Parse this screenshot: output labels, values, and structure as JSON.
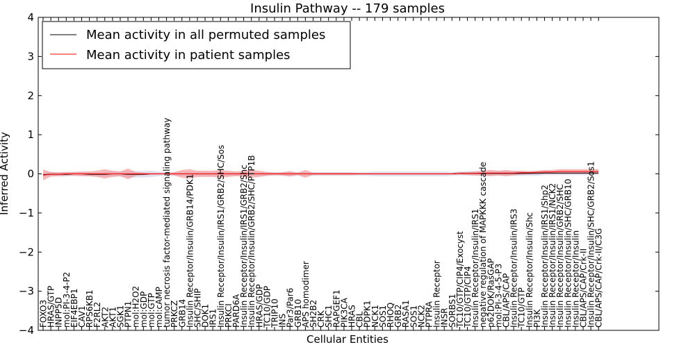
{
  "chart_data": {
    "type": "line",
    "title": "Insulin Pathway -- 179 samples",
    "xlabel": "Cellular Entities",
    "ylabel": "Inferred Activity",
    "ylim": [
      -4,
      4
    ],
    "yticks": [
      -4,
      -3,
      -2,
      -1,
      0,
      1,
      2,
      3,
      4
    ],
    "ytick_labels": [
      "−4",
      "−3",
      "−2",
      "−1",
      "0",
      "1",
      "2",
      "3",
      "4"
    ],
    "legend_position": "top-left",
    "categories": [
      "FOXO3",
      "HRAS/GTP",
      "INPP5D",
      "mol:PI-3-4-P2",
      "EIF4EBP1",
      "CAV1",
      "RPS6KB1",
      "F2RL2",
      "AKT2",
      "AKT1",
      "SGK1",
      "PTPN1",
      "mol:H2O2",
      "mol:GDP",
      "mol:GTP",
      "mol:cAMP",
      "tumor necrosis factor-mediated signaling pathway",
      "PRKCZ",
      "GRB14",
      "Insulin Receptor/Insulin/GRB14/PDK1",
      "SHC/SHIP",
      "DOK1",
      "IRS1",
      "Insulin Receptor/Insulin/IRS1/GRB2/SHC/Sos",
      "PRKCI",
      "PARD6A",
      "Insulin Receptor/Insulin/IRS1/GRB2/Shc",
      "Insulin Receptor/Insulin/GRB2/SHC/PTP1B",
      "HRAS/GDP",
      "TC10/GDP",
      "TRIP10",
      "INS",
      "Par3/Par6",
      "GRB10",
      "APS homodimer",
      "SH2B2",
      "CRK",
      "SHC1",
      "RAPGEF1",
      "PIK3CA",
      "HRAS",
      "CBL",
      "PDPK1",
      "NCK1",
      "SOS1",
      "RHOQ",
      "GRB2",
      "RASA1",
      "SOS1",
      "NCK2",
      "PTPRA",
      "Insulin Receptor",
      "INSR",
      "SORBS1",
      "TC10/GTP/CIP4/Exocyst",
      "TC10/GTP/CIP4",
      "Insulin Receptor/Insulin/IRS1",
      "negative regulation of MAPKKK cascade",
      "p62DOK/RasGAP",
      "mol:PI-3-4-5-P3",
      "CBL/APS/CAP",
      "Insulin Receptor/Insulin/IRS3",
      "TC10/GTP",
      "Insulin Receptor/Insulin/Shc",
      "PI3K",
      "Insulin Receptor/Insulin/IRS1/Shp2",
      "Insulin Receptor/Insulin/IRS1/NCK2",
      "Insulin Receptor/Insulin/GRB2/SHC",
      "Insulin Receptor/Insulin/SHC/GRB10",
      "Insulin Receptor/Insulin",
      "CBL/APS/CAP/Crk-II",
      "Insulin Receptor/Insulin/SHC/GRB2/Sos1",
      "CBL/APS/CAP/Crk-II/C3G"
    ],
    "series": [
      {
        "name": "Mean activity in all permuted samples",
        "color": "#000000",
        "band_color": "#b8b8d8",
        "values": [
          -0.02,
          -0.01,
          -0.01,
          -0.01,
          0.0,
          0.0,
          -0.01,
          -0.01,
          -0.01,
          0.0,
          0.0,
          -0.01,
          -0.01,
          -0.01,
          0.0,
          0.0,
          0.0,
          0.0,
          0.0,
          0.0,
          0.0,
          0.0,
          0.0,
          0.0,
          0.0,
          0.0,
          0.0,
          0.0,
          0.0,
          0.0,
          0.0,
          0.0,
          0.0,
          0.0,
          0.0,
          0.0,
          0.0,
          0.0,
          0.0,
          0.0,
          0.0,
          0.0,
          0.0,
          0.0,
          0.0,
          0.0,
          0.0,
          0.0,
          0.0,
          0.0,
          0.0,
          0.0,
          0.0,
          0.0,
          0.01,
          0.01,
          0.01,
          0.01,
          0.01,
          0.01,
          0.01,
          0.01,
          0.01,
          0.01,
          0.01,
          0.02,
          0.02,
          0.02,
          0.02,
          0.02,
          0.02,
          0.02,
          0.02
        ],
        "spread": [
          0.05,
          0.05,
          0.05,
          0.05,
          0.05,
          0.05,
          0.05,
          0.05,
          0.06,
          0.06,
          0.06,
          0.08,
          0.08,
          0.08,
          0.08,
          0.06,
          0.05,
          0.05,
          0.05,
          0.05,
          0.05,
          0.05,
          0.05,
          0.05,
          0.05,
          0.05,
          0.05,
          0.05,
          0.05,
          0.05,
          0.05,
          0.05,
          0.05,
          0.05,
          0.05,
          0.05,
          0.05,
          0.05,
          0.05,
          0.05,
          0.05,
          0.05,
          0.05,
          0.06,
          0.06,
          0.06,
          0.06,
          0.06,
          0.06,
          0.06,
          0.06,
          0.06,
          0.06,
          0.05,
          0.05,
          0.05,
          0.06,
          0.06,
          0.06,
          0.06,
          0.06,
          0.06,
          0.06,
          0.06,
          0.06,
          0.05,
          0.05,
          0.05,
          0.05,
          0.05,
          0.05,
          0.05,
          0.05
        ]
      },
      {
        "name": "Mean activity in patient samples",
        "color": "#ff0000",
        "band_color": "#f08080",
        "values": [
          -0.03,
          -0.01,
          -0.01,
          0.0,
          0.0,
          0.0,
          0.0,
          0.0,
          0.0,
          0.0,
          0.0,
          0.0,
          0.0,
          0.0,
          0.0,
          0.0,
          0.0,
          0.0,
          0.0,
          0.0,
          0.0,
          0.0,
          0.0,
          0.0,
          0.0,
          0.0,
          0.0,
          0.0,
          0.0,
          0.0,
          0.0,
          0.0,
          0.0,
          0.0,
          0.0,
          0.0,
          0.0,
          0.0,
          0.0,
          0.0,
          0.0,
          0.0,
          0.0,
          0.0,
          0.0,
          0.0,
          0.0,
          0.0,
          0.0,
          0.0,
          0.0,
          0.0,
          0.0,
          0.0,
          0.01,
          0.01,
          0.01,
          0.02,
          0.02,
          0.02,
          0.02,
          0.02,
          0.03,
          0.03,
          0.04,
          0.05,
          0.05,
          0.06,
          0.06,
          0.06,
          0.06,
          0.06,
          0.06
        ],
        "spread": [
          0.14,
          0.06,
          0.05,
          0.05,
          0.05,
          0.06,
          0.06,
          0.08,
          0.12,
          0.08,
          0.06,
          0.14,
          0.05,
          0.03,
          0.02,
          0.02,
          0.02,
          0.04,
          0.1,
          0.12,
          0.08,
          0.08,
          0.08,
          0.1,
          0.08,
          0.06,
          0.08,
          0.1,
          0.08,
          0.05,
          0.03,
          0.04,
          0.07,
          0.03,
          0.1,
          0.03,
          0.03,
          0.03,
          0.03,
          0.03,
          0.03,
          0.02,
          0.02,
          0.02,
          0.02,
          0.02,
          0.02,
          0.02,
          0.02,
          0.02,
          0.02,
          0.02,
          0.02,
          0.02,
          0.03,
          0.04,
          0.05,
          0.06,
          0.08,
          0.06,
          0.08,
          0.06,
          0.05,
          0.04,
          0.04,
          0.05,
          0.05,
          0.06,
          0.06,
          0.06,
          0.06,
          0.06,
          0.06
        ]
      }
    ]
  }
}
